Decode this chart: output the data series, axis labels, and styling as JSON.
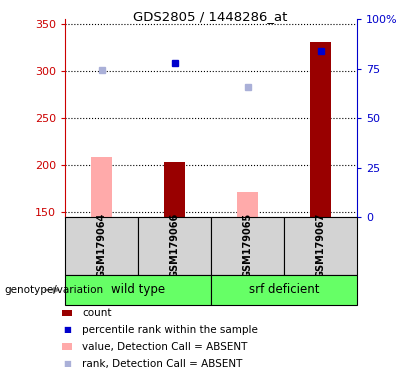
{
  "title": "GDS2805 / 1448286_at",
  "samples": [
    "GSM179064",
    "GSM179066",
    "GSM179065",
    "GSM179067"
  ],
  "ylim_left": [
    145,
    355
  ],
  "yticks_left": [
    150,
    200,
    250,
    300,
    350
  ],
  "ylim_right": [
    0,
    100
  ],
  "yticks_right": [
    0,
    25,
    50,
    75,
    100
  ],
  "bar_color_present": "#990000",
  "bar_color_absent": "#ffaaaa",
  "dot_color_present": "#0000cc",
  "dot_color_absent": "#aab0d8",
  "bar_width": 0.28,
  "count_values": [
    null,
    203,
    null,
    331
  ],
  "rank_values": [
    null,
    309,
    null,
    321
  ],
  "count_absent": [
    209,
    null,
    172,
    null
  ],
  "rank_absent": [
    301,
    null,
    283,
    null
  ],
  "legend_items": [
    {
      "label": "count",
      "color": "#990000",
      "type": "bar"
    },
    {
      "label": "percentile rank within the sample",
      "color": "#0000cc",
      "type": "dot"
    },
    {
      "label": "value, Detection Call = ABSENT",
      "color": "#ffaaaa",
      "type": "bar"
    },
    {
      "label": "rank, Detection Call = ABSENT",
      "color": "#aab0d8",
      "type": "dot"
    }
  ],
  "bg_color": "#ffffff",
  "sample_panel_color": "#d3d3d3",
  "group_green": "#66ff66",
  "genotype_label": "genotype/variation",
  "left_color": "#cc0000",
  "right_color": "#0000cc",
  "title_fontsize": 9.5,
  "axis_fontsize": 8,
  "legend_fontsize": 7.5,
  "sample_fontsize": 7
}
